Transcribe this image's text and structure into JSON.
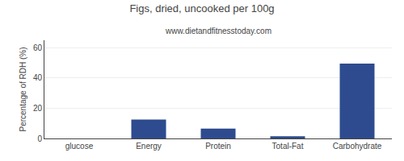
{
  "chart_data": {
    "type": "bar",
    "title": "Figs, dried, uncooked per 100g",
    "subtitle": "www.dietandfitnesstoday.com",
    "ylabel": "Percentage of RDH (%)",
    "categories": [
      "glucose",
      "Energy",
      "Protein",
      "Total-Fat",
      "Carbohydrate"
    ],
    "values": [
      0,
      12.5,
      6.5,
      1.5,
      49.5
    ],
    "color": "#2d4b8e",
    "ylim": [
      0,
      65
    ],
    "yticks": [
      0,
      20,
      40,
      60
    ],
    "grid": true
  }
}
